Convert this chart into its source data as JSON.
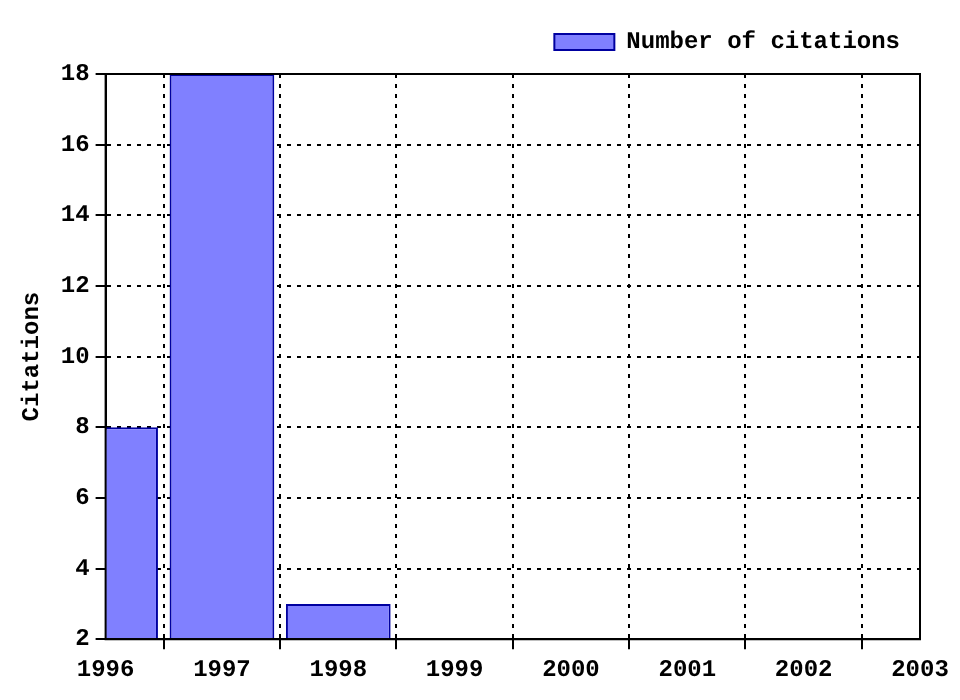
{
  "chart_data": {
    "type": "bar",
    "ylabel": "Citations",
    "x": [
      1996,
      1997,
      1998
    ],
    "series": [
      {
        "name": "Number of citations",
        "color": "#8080ff",
        "values": [
          8,
          18,
          3
        ]
      }
    ],
    "xlim": [
      1996,
      2003
    ],
    "xticks": [
      1996,
      1997,
      1998,
      1999,
      2000,
      2001,
      2002,
      2003
    ],
    "ylim": [
      2,
      18
    ],
    "yticks": [
      2,
      4,
      6,
      8,
      10,
      12,
      14,
      16,
      18
    ],
    "grid": true,
    "legend": "top right"
  }
}
